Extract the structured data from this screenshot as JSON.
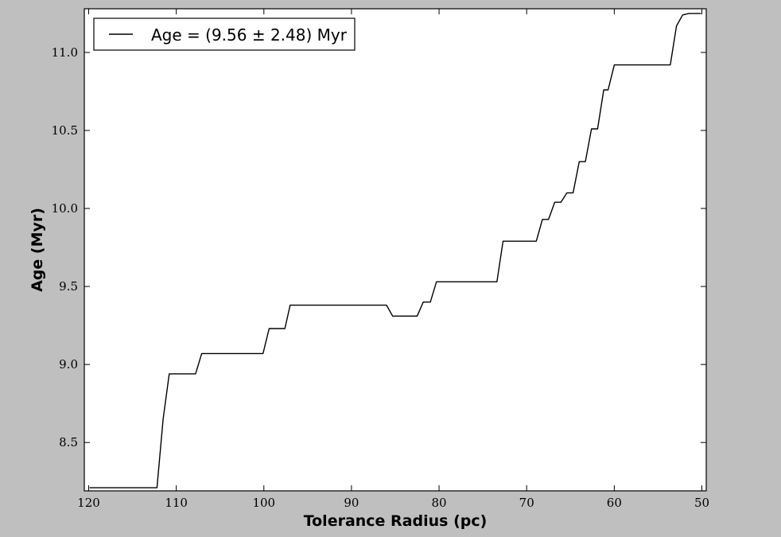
{
  "chart_data": {
    "type": "line",
    "xlabel": "Tolerance Radius (pc)",
    "ylabel": "Age (Myr)",
    "xlim": [
      120.5,
      49.5
    ],
    "ylim": [
      8.19,
      11.28
    ],
    "x_reversed": true,
    "xticks": [
      120,
      110,
      100,
      90,
      80,
      70,
      60,
      50
    ],
    "yticks": [
      8.5,
      9.0,
      9.5,
      10.0,
      10.5,
      11.0
    ],
    "xtick_labels": [
      "120",
      "110",
      "100",
      "90",
      "80",
      "70",
      "60",
      "50"
    ],
    "ytick_labels": [
      "8.5",
      "9.0",
      "9.5",
      "10.0",
      "10.5",
      "11.0"
    ],
    "grid": false,
    "legend_position": "upper-left",
    "series": [
      {
        "name": "Age = (9.56 ± 2.48) Myr",
        "color": "#000000",
        "x": [
          119.9,
          112.2,
          111.5,
          110.8,
          107.8,
          107.1,
          100.1,
          99.4,
          97.6,
          97.0,
          86.0,
          85.3,
          82.5,
          81.8,
          81.0,
          80.3,
          73.4,
          72.7,
          68.9,
          68.2,
          67.5,
          66.8,
          66.1,
          65.4,
          64.7,
          64.0,
          63.3,
          62.6,
          61.9,
          61.2,
          60.7,
          60.0,
          53.6,
          52.9,
          52.2,
          51.5,
          50.1
        ],
        "y": [
          8.21,
          8.21,
          8.65,
          8.94,
          8.94,
          9.07,
          9.07,
          9.23,
          9.23,
          9.38,
          9.38,
          9.31,
          9.31,
          9.4,
          9.4,
          9.53,
          9.53,
          9.79,
          9.79,
          9.93,
          9.93,
          10.04,
          10.04,
          10.1,
          10.1,
          10.3,
          10.3,
          10.51,
          10.51,
          10.76,
          10.76,
          10.92,
          10.92,
          11.17,
          11.24,
          11.25,
          11.25
        ]
      }
    ]
  }
}
